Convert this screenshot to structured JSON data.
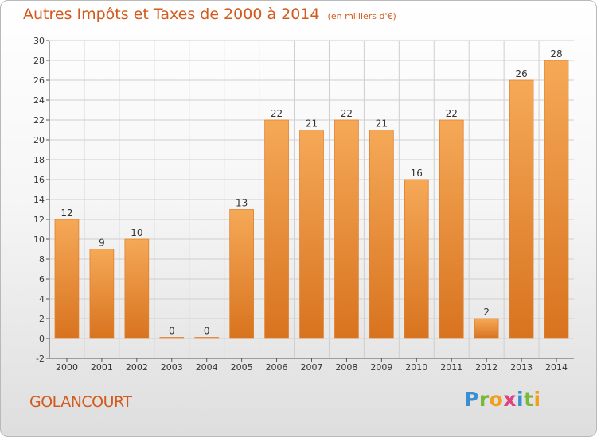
{
  "header": {
    "title": "Autres Impôts et Taxes de 2000 à 2014",
    "unit": "(en milliers d'€)"
  },
  "footer": {
    "commune": "GOLANCOURT",
    "logo": {
      "letters": [
        "P",
        "r",
        "o",
        "x",
        "i",
        "t",
        "i"
      ],
      "colors": [
        "#3a8fd0",
        "#7ab83a",
        "#f0a020",
        "#e04080",
        "#3a8fd0",
        "#7ab83a",
        "#f0a020"
      ]
    }
  },
  "colors": {
    "accent": "#d25a1c",
    "bar_light": "#f5a957",
    "bar_dark": "#d8731f",
    "grid": "#cfcfcf"
  },
  "chart_data": {
    "type": "bar",
    "categories": [
      "2000",
      "2001",
      "2002",
      "2003",
      "2004",
      "2005",
      "2006",
      "2007",
      "2008",
      "2009",
      "2010",
      "2011",
      "2012",
      "2013",
      "2014"
    ],
    "values": [
      12,
      9,
      10,
      0,
      0,
      13,
      22,
      21,
      22,
      21,
      16,
      22,
      2,
      26,
      28
    ],
    "data_labels": [
      "12",
      "9",
      "10",
      "0",
      "0",
      "13",
      "22",
      "21",
      "22",
      "21",
      "16",
      "22",
      "2",
      "26",
      "28"
    ],
    "title": "Autres Impôts et Taxes de 2000 à 2014",
    "ylim": [
      -2,
      30
    ],
    "yticks": [
      -2,
      0,
      2,
      4,
      6,
      8,
      10,
      12,
      14,
      16,
      18,
      20,
      22,
      24,
      26,
      28,
      30
    ],
    "ytick_labels": [
      "-2",
      "0",
      "2",
      "4",
      "6",
      "8",
      "10",
      "12",
      "14",
      "16",
      "18",
      "20",
      "22",
      "24",
      "26",
      "28",
      "30"
    ],
    "grid": true,
    "legend": "none"
  }
}
